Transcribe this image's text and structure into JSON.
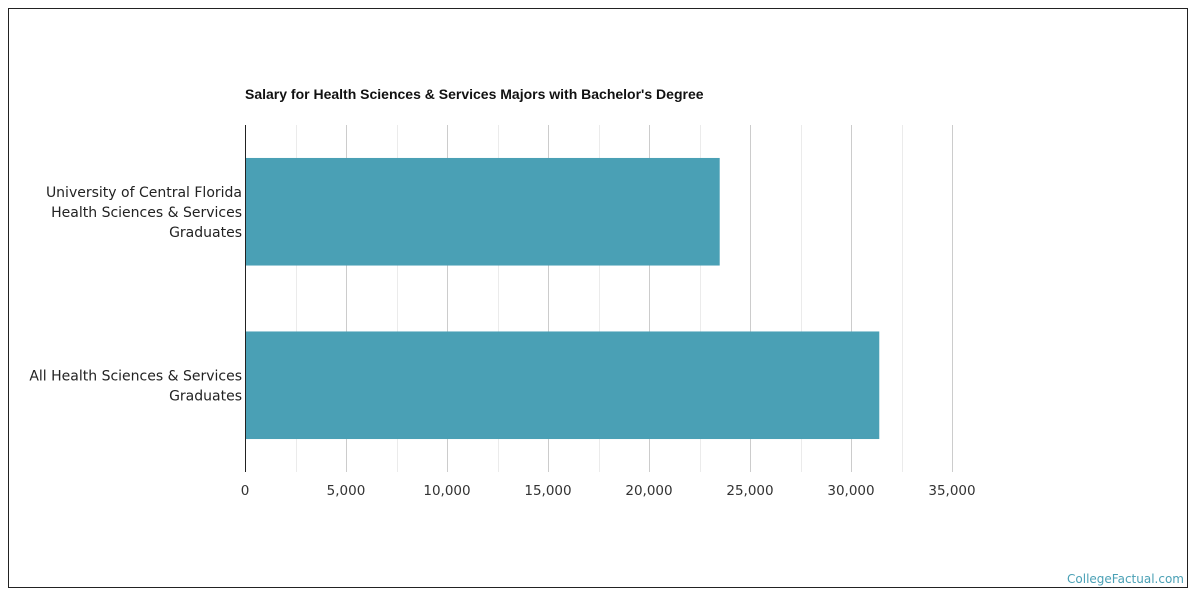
{
  "chart_data": {
    "type": "bar",
    "orientation": "horizontal",
    "title": "Salary for Health Sciences & Services Majors with Bachelor's Degree",
    "categories": [
      [
        "University of Central Florida",
        "Health Sciences & Services",
        "Graduates"
      ],
      [
        "All Health Sciences & Services",
        "Graduates"
      ]
    ],
    "values": [
      23500,
      31400
    ],
    "bar_color": "#4aa0b5",
    "xlim": [
      0,
      35000
    ],
    "x_ticks": [
      0,
      5000,
      10000,
      15000,
      20000,
      25000,
      30000,
      35000
    ],
    "x_tick_labels": [
      "0",
      "5,000",
      "10,000",
      "15,000",
      "20,000",
      "25,000",
      "30,000",
      "35,000"
    ],
    "grid": true
  },
  "watermark": "CollegeFactual.com"
}
